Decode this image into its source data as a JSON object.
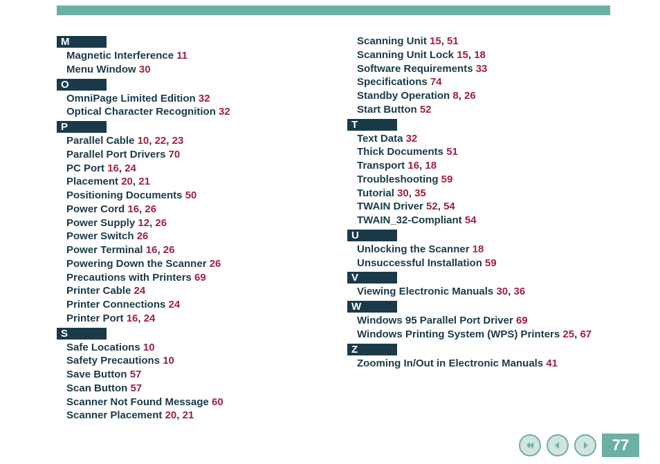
{
  "page_number": "77",
  "colors": {
    "accent": "#6bb0a5",
    "text": "#1a3a4a",
    "page_ref": "#a02040",
    "header_bg": "#1a3a4a",
    "header_fg": "#ffffff"
  },
  "columns": [
    {
      "sections": [
        {
          "letter": "M",
          "entries": [
            {
              "term": "Magnetic Interference",
              "pages": [
                "11"
              ]
            },
            {
              "term": "Menu Window",
              "pages": [
                "30"
              ]
            }
          ]
        },
        {
          "letter": "O",
          "entries": [
            {
              "term": "OmniPage Limited Edition",
              "pages": [
                "32"
              ]
            },
            {
              "term": "Optical Character Recognition",
              "pages": [
                "32"
              ]
            }
          ]
        },
        {
          "letter": "P",
          "entries": [
            {
              "term": "Parallel Cable",
              "pages": [
                "10",
                "22",
                "23"
              ]
            },
            {
              "term": "Parallel Port Drivers",
              "pages": [
                "70"
              ]
            },
            {
              "term": "PC Port",
              "pages": [
                "16",
                "24"
              ]
            },
            {
              "term": "Placement",
              "pages": [
                "20",
                "21"
              ]
            },
            {
              "term": "Positioning Documents",
              "pages": [
                "50"
              ]
            },
            {
              "term": "Power Cord",
              "pages": [
                "16",
                "26"
              ]
            },
            {
              "term": "Power Supply",
              "pages": [
                "12",
                "26"
              ]
            },
            {
              "term": "Power Switch",
              "pages": [
                "26"
              ]
            },
            {
              "term": "Power Terminal",
              "pages": [
                "16",
                "26"
              ]
            },
            {
              "term": "Powering Down the Scanner",
              "pages": [
                "26"
              ]
            },
            {
              "term": "Precautions with Printers",
              "pages": [
                "69"
              ]
            },
            {
              "term": "Printer Cable",
              "pages": [
                "24"
              ]
            },
            {
              "term": "Printer Connections",
              "pages": [
                "24"
              ]
            },
            {
              "term": "Printer Port",
              "pages": [
                "16",
                "24"
              ]
            }
          ]
        },
        {
          "letter": "S",
          "entries": [
            {
              "term": "Safe Locations",
              "pages": [
                "10"
              ]
            },
            {
              "term": "Safety Precautions",
              "pages": [
                "10"
              ]
            },
            {
              "term": "Save Button",
              "pages": [
                "57"
              ]
            },
            {
              "term": "Scan Button",
              "pages": [
                "57"
              ]
            },
            {
              "term": "Scanner Not Found Message",
              "pages": [
                "60"
              ]
            },
            {
              "term": "Scanner Placement",
              "pages": [
                "20",
                "21"
              ]
            }
          ]
        }
      ]
    },
    {
      "sections": [
        {
          "letter": null,
          "entries": [
            {
              "term": "Scanning Unit",
              "pages": [
                "15",
                "51"
              ]
            },
            {
              "term": "Scanning Unit Lock",
              "pages": [
                "15",
                "18"
              ]
            },
            {
              "term": "Software Requirements",
              "pages": [
                "33"
              ]
            },
            {
              "term": "Specifications",
              "pages": [
                "74"
              ]
            },
            {
              "term": "Standby Operation",
              "pages": [
                "8",
                "26"
              ]
            },
            {
              "term": "Start Button",
              "pages": [
                "52"
              ]
            }
          ]
        },
        {
          "letter": "T",
          "entries": [
            {
              "term": "Text Data",
              "pages": [
                "32"
              ]
            },
            {
              "term": "Thick Documents",
              "pages": [
                "51"
              ]
            },
            {
              "term": "Transport",
              "pages": [
                "16",
                "18"
              ]
            },
            {
              "term": "Troubleshooting",
              "pages": [
                "59"
              ]
            },
            {
              "term": "Tutorial",
              "pages": [
                "30",
                "35"
              ]
            },
            {
              "term": "TWAIN Driver",
              "pages": [
                "52",
                "54"
              ]
            },
            {
              "term": "TWAIN_32-Compliant",
              "pages": [
                "54"
              ]
            }
          ]
        },
        {
          "letter": "U",
          "entries": [
            {
              "term": "Unlocking the Scanner",
              "pages": [
                "18"
              ]
            },
            {
              "term": "Unsuccessful Installation",
              "pages": [
                "59"
              ]
            }
          ]
        },
        {
          "letter": "V",
          "entries": [
            {
              "term": "Viewing Electronic Manuals",
              "pages": [
                "30",
                "36"
              ]
            }
          ]
        },
        {
          "letter": "W",
          "entries": [
            {
              "term": "Windows 95 Parallel Port Driver",
              "pages": [
                "69"
              ]
            },
            {
              "term": "Windows Printing System (WPS) Printers",
              "pages": [
                "25",
                "67"
              ]
            }
          ]
        },
        {
          "letter": "Z",
          "entries": [
            {
              "term": "Zooming In/Out in Electronic Manuals",
              "pages": [
                "41"
              ]
            }
          ]
        }
      ]
    }
  ],
  "nav": {
    "first_icon": "first-page-icon",
    "prev_icon": "prev-page-icon",
    "next_icon": "next-page-icon"
  }
}
